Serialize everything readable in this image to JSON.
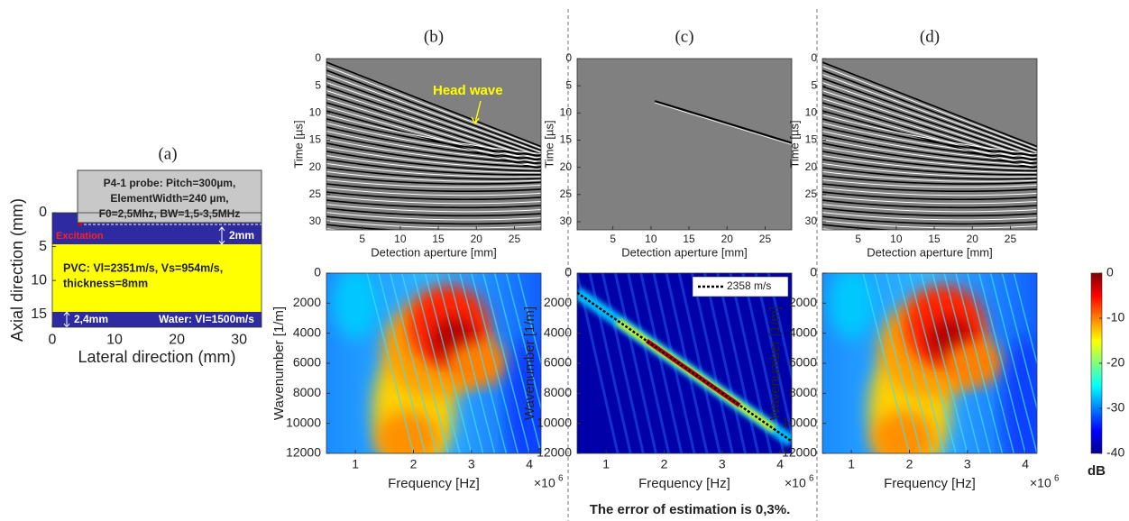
{
  "panel_a": {
    "label": "(a)",
    "xlabel": "Lateral direction (mm)",
    "ylabel": "Axial direction (mm)",
    "xlim": [
      0,
      33.6
    ],
    "ylim": [
      0,
      16.9
    ],
    "y_reversed": true,
    "xticks": [
      0,
      10,
      20,
      30
    ],
    "yticks": [
      0,
      5,
      10,
      15
    ],
    "probe_text": [
      "P4-1 probe: Pitch=300µm,",
      "ElementWidth=240 µm,",
      "F0=2,5Mhz, BW=1,5-3,5MHz"
    ],
    "excitation": "Excitation",
    "top_thickness": "2mm",
    "pvc_text": [
      "PVC: Vl=2351m/s, Vs=954m/s,",
      "thickness=8mm"
    ],
    "bottom_thickness": "2,4mm",
    "water_text": "Water: Vl=1500m/s"
  },
  "panels": [
    {
      "label": "(b)",
      "annotation": "Head wave",
      "top": {
        "ylabel": "Time [µs]",
        "xlabel": "Detection aperture [mm]",
        "xlim": [
          0.3,
          28.5
        ],
        "ylim": [
          0,
          31.5
        ],
        "y_reversed": true,
        "xticks": [
          5,
          10,
          15,
          20,
          25
        ],
        "yticks": [
          0,
          5,
          10,
          15,
          20,
          25,
          30
        ]
      },
      "bottom": {
        "ylabel": "Wavenumber [1/m]",
        "xlabel": "Frequency [Hz]",
        "multiplier": "×10",
        "multiplier_exponent": "6",
        "xlim": [
          0.5,
          4.2
        ],
        "ylim": [
          0,
          12000
        ],
        "y_reversed": true,
        "xticks": [
          1,
          2,
          3,
          4
        ],
        "yticks": [
          0,
          2000,
          4000,
          6000,
          8000,
          10000,
          12000
        ]
      }
    },
    {
      "label": "(c)",
      "legend": "2358 m/s",
      "caption": "The error of estimation is 0,3%.",
      "top": {
        "ylabel": "Time [µs]",
        "xlabel": "Detection aperture [mm]",
        "xlim": [
          0.3,
          28.5
        ],
        "ylim": [
          0,
          31.5
        ],
        "y_reversed": true,
        "xticks": [
          5,
          10,
          15,
          20,
          25
        ],
        "yticks": [
          0,
          5,
          10,
          15,
          20,
          25,
          30
        ]
      },
      "bottom": {
        "ylabel": "Wavenumber [1/m]",
        "xlabel": "Frequency [Hz]",
        "multiplier": "×10",
        "multiplier_exponent": "6",
        "xlim": [
          0.5,
          4.2
        ],
        "ylim": [
          0,
          12000
        ],
        "y_reversed": true,
        "xticks": [
          1,
          2,
          3,
          4
        ],
        "yticks": [
          0,
          2000,
          4000,
          6000,
          8000,
          10000,
          12000
        ]
      }
    },
    {
      "label": "(d)",
      "top": {
        "ylabel": "Time [µs]",
        "xlabel": "Detection aperture [mm]",
        "xlim": [
          0.3,
          28.5
        ],
        "ylim": [
          0,
          31.5
        ],
        "y_reversed": true,
        "xticks": [
          5,
          10,
          15,
          20,
          25
        ],
        "yticks": [
          0,
          5,
          10,
          15,
          20,
          25,
          30
        ]
      },
      "bottom": {
        "ylabel": "Wavenumber [1/m]",
        "xlabel": "Frequency [Hz]",
        "multiplier": "×10",
        "multiplier_exponent": "6",
        "xlim": [
          0.5,
          4.2
        ],
        "ylim": [
          0,
          12000
        ],
        "y_reversed": true,
        "xticks": [
          1,
          2,
          3,
          4
        ],
        "yticks": [
          0,
          2000,
          4000,
          6000,
          8000,
          10000,
          12000
        ]
      },
      "colorbar": {
        "label": "dB",
        "ylim": [
          -40,
          0
        ],
        "yticks": [
          0,
          -10,
          -20,
          -30,
          -40
        ]
      }
    }
  ]
}
